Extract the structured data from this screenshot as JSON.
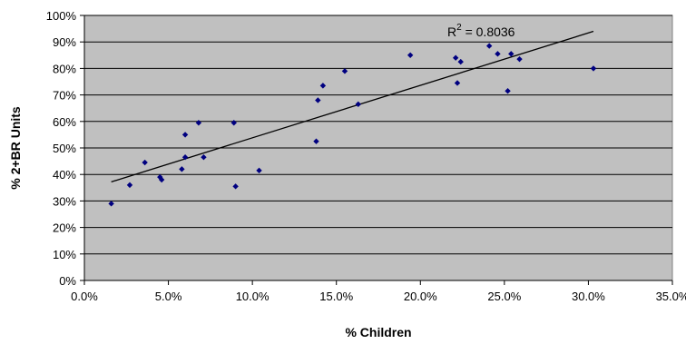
{
  "chart_data": {
    "type": "scatter",
    "title": "",
    "xlabel": "% Children",
    "ylabel": "% 2+BR Units",
    "xlim": [
      0,
      35
    ],
    "ylim": [
      0,
      100
    ],
    "x_ticks": [
      "0.0%",
      "5.0%",
      "10.0%",
      "15.0%",
      "20.0%",
      "25.0%",
      "30.0%",
      "35.0%"
    ],
    "y_ticks": [
      "0%",
      "10%",
      "20%",
      "30%",
      "40%",
      "50%",
      "60%",
      "70%",
      "80%",
      "90%",
      "100%"
    ],
    "grid": "horizontal",
    "legend": "none",
    "colors": {
      "plot_background": "#c0c0c0",
      "marker": "#000080",
      "trendline": "#000000",
      "gridline": "#000000"
    },
    "annotation": {
      "text": "R",
      "superscript": "2",
      "suffix": " = 0.8036"
    },
    "trendline": {
      "type": "linear",
      "x": [
        1.6,
        30.3
      ],
      "y": [
        37.2,
        94.0
      ]
    },
    "points": [
      {
        "x": 1.6,
        "y": 29
      },
      {
        "x": 2.7,
        "y": 36
      },
      {
        "x": 3.6,
        "y": 44.5
      },
      {
        "x": 4.5,
        "y": 39
      },
      {
        "x": 4.6,
        "y": 38
      },
      {
        "x": 5.8,
        "y": 42
      },
      {
        "x": 6.0,
        "y": 55
      },
      {
        "x": 6.0,
        "y": 46.5
      },
      {
        "x": 6.8,
        "y": 59.5
      },
      {
        "x": 7.1,
        "y": 46.5
      },
      {
        "x": 8.9,
        "y": 59.5
      },
      {
        "x": 9.0,
        "y": 35.5
      },
      {
        "x": 10.4,
        "y": 41.5
      },
      {
        "x": 13.8,
        "y": 52.5
      },
      {
        "x": 13.9,
        "y": 68
      },
      {
        "x": 14.2,
        "y": 73.5
      },
      {
        "x": 15.5,
        "y": 79
      },
      {
        "x": 16.3,
        "y": 66.5
      },
      {
        "x": 19.4,
        "y": 85
      },
      {
        "x": 22.1,
        "y": 84
      },
      {
        "x": 22.4,
        "y": 82.5
      },
      {
        "x": 22.2,
        "y": 74.5
      },
      {
        "x": 24.1,
        "y": 88.5
      },
      {
        "x": 24.6,
        "y": 85.5
      },
      {
        "x": 25.2,
        "y": 71.5
      },
      {
        "x": 25.4,
        "y": 85.5
      },
      {
        "x": 25.9,
        "y": 83.5
      },
      {
        "x": 30.3,
        "y": 80
      }
    ]
  }
}
